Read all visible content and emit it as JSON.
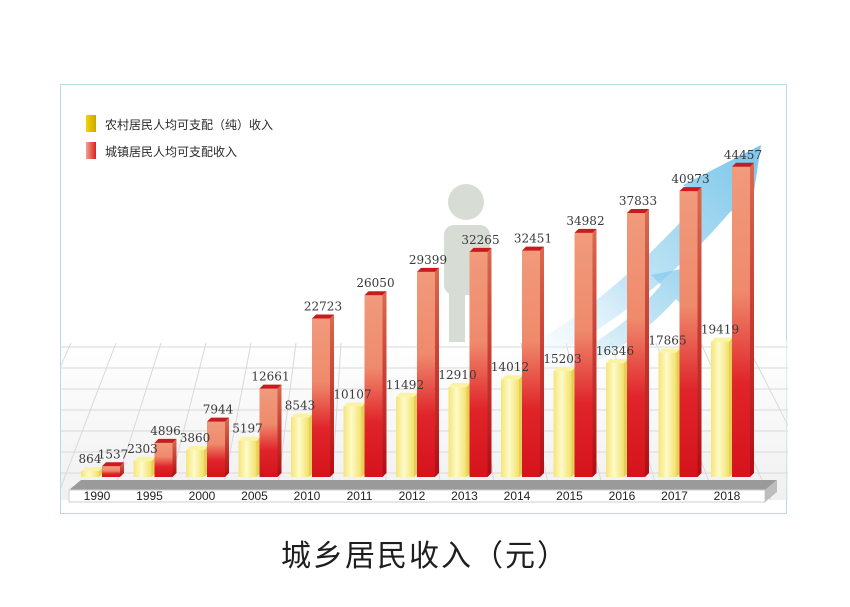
{
  "caption": "城乡居民收入（元）",
  "chart_data": {
    "type": "bar",
    "title": "城乡居民收入（元）",
    "xlabel": "",
    "ylabel": "",
    "ylim": [
      0,
      45000
    ],
    "grid": false,
    "legend_position": "top-left",
    "categories": [
      "1990",
      "1995",
      "2000",
      "2005",
      "2010",
      "2011",
      "2012",
      "2013",
      "2014",
      "2015",
      "2016",
      "2017",
      "2018"
    ],
    "series": [
      {
        "name": "农村居民人均可支配（纯）收入",
        "color": "#f7ee8a",
        "values": [
          864,
          2303,
          3860,
          5197,
          8543,
          10107,
          11492,
          12910,
          14012,
          15203,
          16346,
          17865,
          19419
        ]
      },
      {
        "name": "城镇居民人均可支配收入",
        "color": "#e53a2e",
        "values": [
          1537,
          4896,
          7944,
          12661,
          22723,
          26050,
          29399,
          32265,
          32451,
          34982,
          37833,
          40973,
          44457
        ]
      }
    ]
  }
}
